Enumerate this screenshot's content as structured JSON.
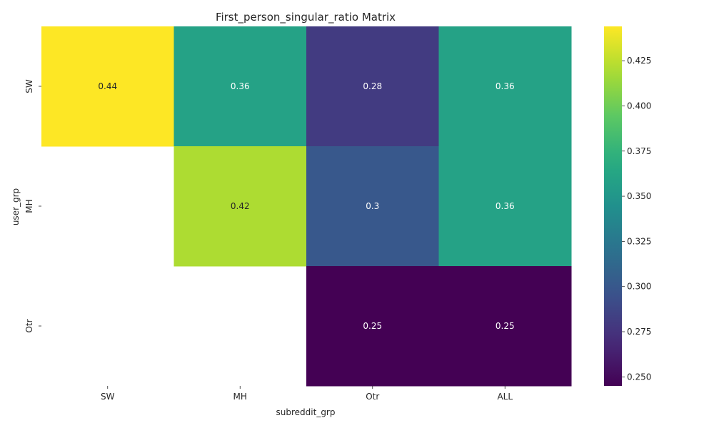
{
  "chart_data": {
    "type": "heatmap",
    "title": "First_person_singular_ratio Matrix",
    "xlabel": "subreddit_grp",
    "ylabel": "user_grp",
    "x_categories": [
      "SW",
      "MH",
      "Otr",
      "ALL"
    ],
    "y_categories": [
      "SW",
      "MH",
      "Otr"
    ],
    "values": [
      [
        0.444,
        0.36,
        0.28,
        0.36
      ],
      [
        null,
        0.42,
        0.3,
        0.36
      ],
      [
        null,
        null,
        0.245,
        0.245
      ]
    ],
    "annotations": [
      [
        "0.44",
        "0.36",
        "0.28",
        "0.36"
      ],
      [
        "",
        "0.42",
        "0.3",
        "0.36"
      ],
      [
        "",
        "",
        "0.25",
        "0.25"
      ]
    ],
    "colormap": "viridis",
    "colorbar": {
      "range": [
        0.245,
        0.444
      ],
      "ticks": [
        "0.250",
        "0.275",
        "0.300",
        "0.325",
        "0.350",
        "0.375",
        "0.400",
        "0.425"
      ]
    }
  }
}
